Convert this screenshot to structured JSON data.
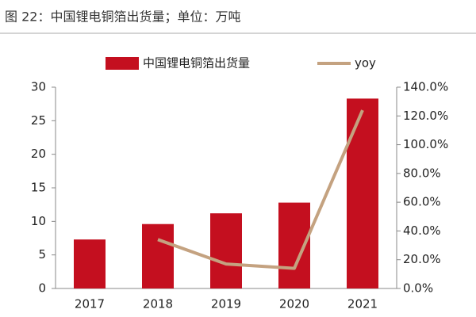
{
  "chart_data": {
    "type": "bar",
    "title": "图 22：中国锂电铜箔出货量；单位：万吨",
    "categories": [
      "2017",
      "2018",
      "2019",
      "2020",
      "2021"
    ],
    "series": [
      {
        "name": "中国锂电铜箔出货量",
        "type": "bar",
        "color": "#c40f1f",
        "values": [
          7.3,
          9.6,
          11.2,
          12.8,
          28.3
        ]
      },
      {
        "name": "yoy",
        "type": "line",
        "axis": "y2",
        "color": "#c4a280",
        "values": [
          null,
          34,
          17,
          14,
          124
        ]
      }
    ],
    "ylim": [
      0,
      30
    ],
    "yticks": [
      0,
      5,
      10,
      15,
      20,
      25,
      30
    ],
    "y2lim": [
      0,
      140
    ],
    "y2ticks": [
      {
        "value": 0,
        "label": "0.0%"
      },
      {
        "value": 20,
        "label": "20.0%"
      },
      {
        "value": 40,
        "label": "40.0%"
      },
      {
        "value": 60,
        "label": "60.0%"
      },
      {
        "value": 80,
        "label": "80.0%"
      },
      {
        "value": 100,
        "label": "100.0%"
      },
      {
        "value": 120,
        "label": "120.0%"
      },
      {
        "value": 140,
        "label": "140.0%"
      }
    ],
    "legend": "top"
  }
}
